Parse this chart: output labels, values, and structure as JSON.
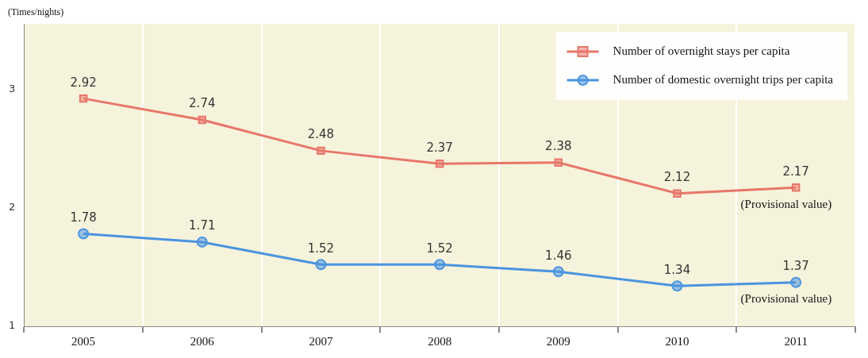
{
  "chart_data": {
    "type": "line",
    "ylabel": "(Times/nights)",
    "categories": [
      "2005",
      "2006",
      "2007",
      "2008",
      "2009",
      "2010",
      "2011"
    ],
    "series": [
      {
        "name": "Number of overnight stays per capita",
        "color": "#e8766a",
        "marker": "square",
        "values": [
          2.92,
          2.74,
          2.48,
          2.37,
          2.38,
          2.12,
          2.17
        ]
      },
      {
        "name": "Number of domestic overnight trips per capita",
        "color": "#4a94e0",
        "marker": "circle",
        "values": [
          1.78,
          1.71,
          1.52,
          1.52,
          1.46,
          1.34,
          1.37
        ]
      }
    ],
    "ylim": [
      1,
      3.55
    ],
    "yticks": [
      1,
      2,
      3
    ],
    "grid": "x",
    "legend": "top right",
    "data_labels": true,
    "line_style": "solid",
    "annotations": [
      {
        "text": "(Provisional value)",
        "x": "2011",
        "y": 2.17
      },
      {
        "text": "(Provisional value)",
        "x": "2011",
        "y": 1.37
      }
    ]
  }
}
